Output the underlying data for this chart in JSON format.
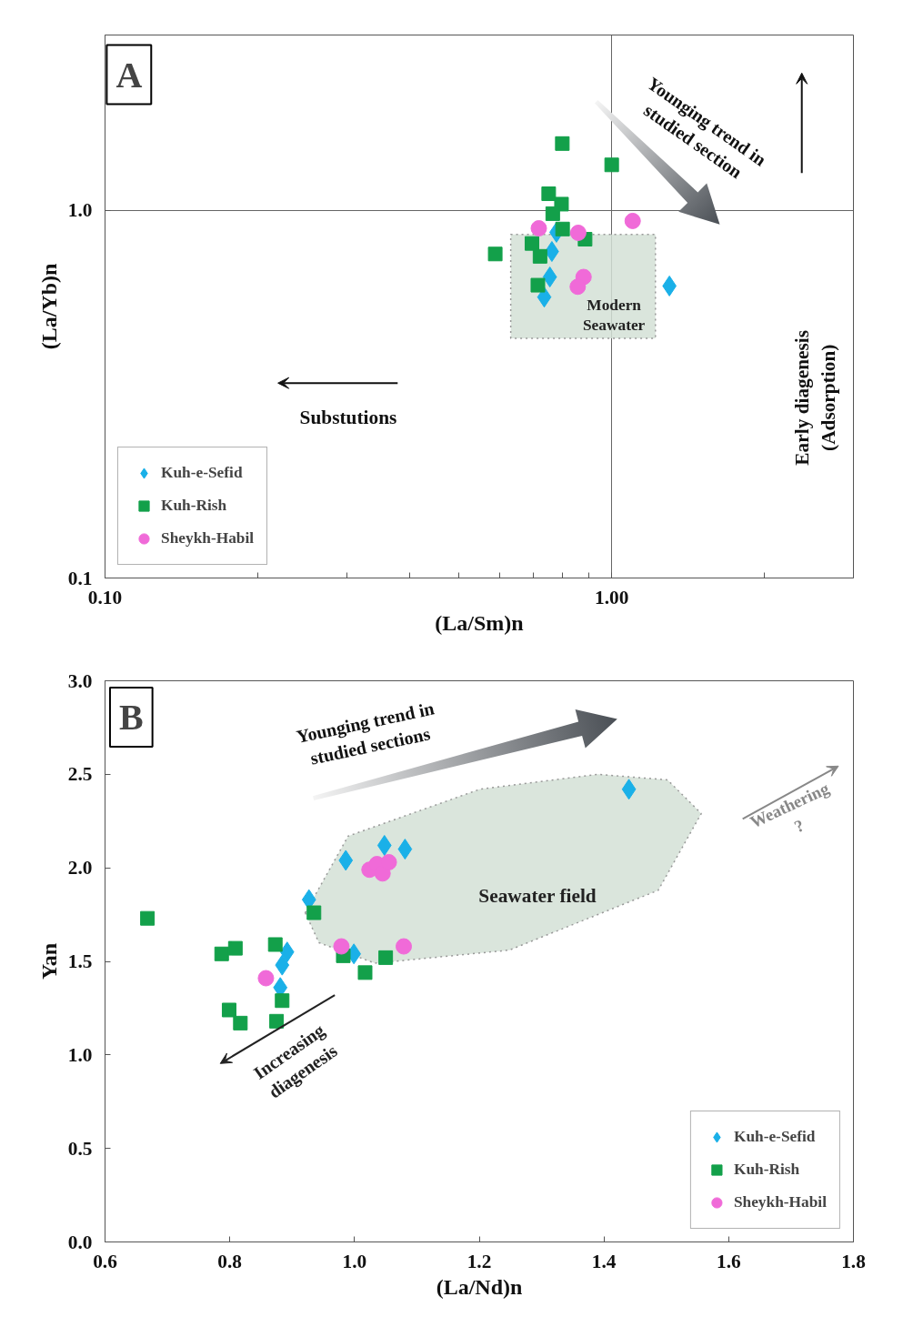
{
  "chart_data": [
    {
      "type": "scatter",
      "title": "A",
      "xlabel": "(La/Sm)n",
      "ylabel": "(La/Yb)n",
      "log": "xy",
      "xlim": [
        0.1,
        3
      ],
      "ylim": [
        0.1,
        3
      ],
      "xticks": [
        {
          "value": 0.1,
          "label": "0.10"
        },
        {
          "value": 0.2,
          "label": null
        },
        {
          "value": 0.3,
          "label": null
        },
        {
          "value": 0.4,
          "label": null
        },
        {
          "value": 0.5,
          "label": null
        },
        {
          "value": 0.6,
          "label": null
        },
        {
          "value": 0.7,
          "label": null
        },
        {
          "value": 0.8,
          "label": null
        },
        {
          "value": 0.9,
          "label": null
        },
        {
          "value": 1,
          "label": "1.00"
        },
        {
          "value": 2,
          "label": null
        }
      ],
      "yticks": [
        {
          "value": 0.1,
          "label": "0.1"
        },
        {
          "value": 1,
          "label": "1.0"
        }
      ],
      "grid": true,
      "legend": "bottom left",
      "annotations": [
        "Younging trend in\nstudied section",
        "Substutions",
        "Early diagenesis\n(Adsorption)",
        "Modern\nSeawater"
      ],
      "series": [
        {
          "type": "area",
          "color": "#d3e0d6",
          "line_style": "dotted",
          "x": [
            0.632,
            0.632,
            1.22,
            1.22
          ],
          "values": [
            0.449,
            0.86,
            0.86,
            0.449
          ]
        },
        {
          "name": "Kuh-e-Sefid",
          "color": "#1ab0e8",
          "marker": "diamond",
          "x": [
            0.778,
            0.762,
            0.755,
            0.736,
            1.3
          ],
          "values": [
            0.872,
            0.773,
            0.659,
            0.581,
            0.623
          ]
        },
        {
          "name": "Kuh-Rish",
          "color": "#13a04a",
          "marker": "square",
          "x": [
            0.799,
            1.0,
            0.751,
            0.796,
            0.765,
            0.886,
            0.696,
            0.722,
            0.589,
            0.715,
            0.8
          ],
          "values": [
            1.52,
            1.33,
            1.11,
            1.04,
            0.98,
            0.835,
            0.813,
            0.75,
            0.761,
            0.626,
            0.89
          ]
        },
        {
          "name": "Sheykh-Habil",
          "color": "#f06ad8",
          "marker": "circle",
          "x": [
            0.718,
            0.859,
            1.1,
            0.88,
            0.857
          ],
          "values": [
            0.894,
            0.869,
            0.936,
            0.659,
            0.62
          ]
        }
      ]
    },
    {
      "type": "scatter",
      "title": "B",
      "xlabel": "(La/Nd)n",
      "ylabel": "Yan",
      "xlim": [
        0.6,
        1.8
      ],
      "ylim": [
        0,
        3
      ],
      "xticks": [
        {
          "value": 0.6,
          "label": "0.6"
        },
        {
          "value": 0.8,
          "label": "0.8"
        },
        {
          "value": 1.0,
          "label": "1.0"
        },
        {
          "value": 1.2,
          "label": "1.2"
        },
        {
          "value": 1.4,
          "label": "1.4"
        },
        {
          "value": 1.6,
          "label": "1.6"
        },
        {
          "value": 1.8,
          "label": "1.8"
        }
      ],
      "yticks": [
        {
          "value": 0,
          "label": "0.0"
        },
        {
          "value": 0.5,
          "label": "0.5"
        },
        {
          "value": 1.0,
          "label": "1.0"
        },
        {
          "value": 1.5,
          "label": "1.5"
        },
        {
          "value": 2.0,
          "label": "2.0"
        },
        {
          "value": 2.5,
          "label": "2.5"
        },
        {
          "value": 3.0,
          "label": "3.0"
        }
      ],
      "legend": "bottom right",
      "annotations": [
        "Younging trend in\nstudied sections",
        "Seawater field",
        "Weathering\n?",
        "Increasing\ndiagenesis"
      ],
      "series": [
        {
          "type": "area",
          "color": "#d3e0d6",
          "line_style": "dotted",
          "x": [
            0.921,
            0.943,
            1.033,
            1.248,
            1.487,
            1.556,
            1.502,
            1.391,
            1.201,
            0.99
          ],
          "values": [
            1.76,
            1.6,
            1.49,
            1.56,
            1.88,
            2.29,
            2.47,
            2.5,
            2.42,
            2.17
          ]
        },
        {
          "name": "Kuh-e-Sefid",
          "color": "#1ab0e8",
          "marker": "diamond",
          "x": [
            0.986,
            1.048,
            1.081,
            0.927,
            0.892,
            0.884,
            0.881,
            0.999,
            1.44
          ],
          "values": [
            2.04,
            2.12,
            2.1,
            1.83,
            1.55,
            1.48,
            1.36,
            1.54,
            2.42
          ]
        },
        {
          "name": "Kuh-Rish",
          "color": "#13a04a",
          "marker": "square",
          "x": [
            0.668,
            0.787,
            0.809,
            0.873,
            0.935,
            0.982,
            1.05,
            1.017,
            0.884,
            0.799,
            0.817,
            0.875
          ],
          "values": [
            1.73,
            1.54,
            1.57,
            1.59,
            1.76,
            1.53,
            1.52,
            1.44,
            1.29,
            1.24,
            1.17,
            1.18
          ]
        },
        {
          "name": "Sheykh-Habil",
          "color": "#f06ad8",
          "marker": "circle",
          "x": [
            0.858,
            0.979,
            1.079,
            1.024,
            1.036,
            1.045,
            1.055
          ],
          "values": [
            1.41,
            1.58,
            1.58,
            1.99,
            2.02,
            1.97,
            2.03
          ]
        }
      ]
    }
  ]
}
